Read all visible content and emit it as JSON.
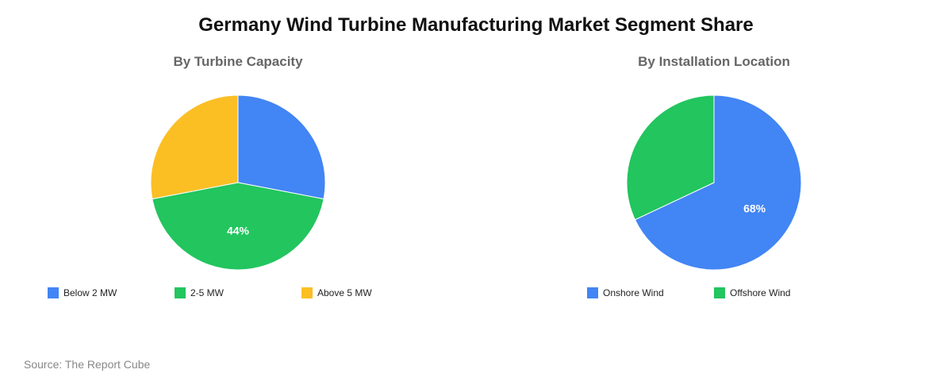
{
  "title": "Germany Wind Turbine Manufacturing Market Segment Share",
  "source": "Source: The Report Cube",
  "chart_data": [
    {
      "type": "pie",
      "title": "By Turbine Capacity",
      "categories": [
        "Below 2 MW",
        "2-5 MW",
        "Above 5 MW"
      ],
      "values": [
        28,
        44,
        28
      ],
      "colors": [
        "#4285F4",
        "#22C55E",
        "#FBBF24"
      ],
      "data_labels": [
        "",
        "44%",
        ""
      ],
      "legend_position": "bottom"
    },
    {
      "type": "pie",
      "title": "By Installation Location",
      "categories": [
        "Onshore Wind",
        "Offshore Wind"
      ],
      "values": [
        68,
        32
      ],
      "colors": [
        "#4285F4",
        "#22C55E"
      ],
      "data_labels": [
        "68%",
        ""
      ],
      "legend_position": "bottom"
    }
  ]
}
